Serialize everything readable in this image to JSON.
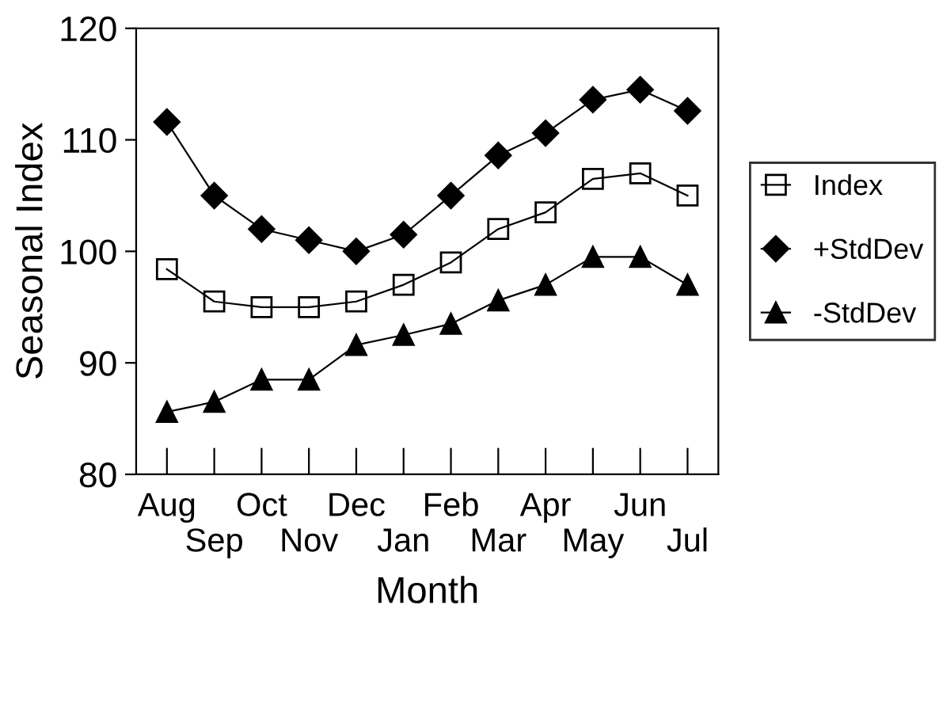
{
  "chart_data": {
    "type": "line",
    "xlabel": "Month",
    "ylabel": "Seasonal Index",
    "categories": [
      "Aug",
      "Sep",
      "Oct",
      "Nov",
      "Dec",
      "Jan",
      "Feb",
      "Mar",
      "Apr",
      "May",
      "Jun",
      "Jul"
    ],
    "series": [
      {
        "name": "Index",
        "color": "#000000",
        "marker": "square",
        "values": [
          98.4,
          95.5,
          95.0,
          95.0,
          95.5,
          97.0,
          99.0,
          102.0,
          103.5,
          106.5,
          107.0,
          105.0
        ]
      },
      {
        "name": "+StdDev",
        "color": "#000000",
        "marker": "diamond",
        "values": [
          111.6,
          105.0,
          102.0,
          101.0,
          100.0,
          101.5,
          105.0,
          108.6,
          110.6,
          113.6,
          114.5,
          112.6
        ]
      },
      {
        "name": "-StdDev",
        "color": "#000000",
        "marker": "triangle",
        "values": [
          85.6,
          86.5,
          88.5,
          88.5,
          91.6,
          92.5,
          93.5,
          95.6,
          97.0,
          99.5,
          99.5,
          97.0
        ]
      }
    ],
    "ylim": [
      80,
      120
    ],
    "yticks": [
      80,
      90,
      100,
      110,
      120
    ],
    "grid": false,
    "legend": "right",
    "line_style": "solid"
  }
}
